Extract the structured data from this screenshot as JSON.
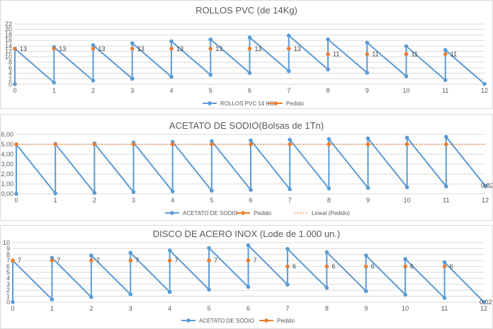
{
  "colors": {
    "series": "#5b9bd5",
    "pedido": "#ed7d31",
    "grid": "#d9d9d9",
    "text": "#595959"
  },
  "chart_data": [
    {
      "type": "line",
      "title": "ROLLOS PVC (de 14Kg)",
      "x": [
        0,
        1,
        2,
        3,
        4,
        5,
        6,
        7,
        8,
        9,
        10,
        11,
        12
      ],
      "ylim": [
        0,
        22
      ],
      "yticks": [
        0,
        2,
        4,
        6,
        8,
        10,
        12,
        14,
        16,
        18,
        20,
        22
      ],
      "ytick_labels": [
        "0",
        "2",
        "4",
        "6",
        "8",
        "10",
        "12",
        "14",
        "16",
        "18",
        "20",
        "22"
      ],
      "series": [
        {
          "name": "ROLLOS PVC 14 KG",
          "points": [
            [
              0,
              0
            ],
            [
              0,
              13
            ],
            [
              1,
              0.6
            ],
            [
              1,
              13.6
            ],
            [
              2,
              1.3
            ],
            [
              2,
              14.3
            ],
            [
              3,
              2
            ],
            [
              3,
              15
            ],
            [
              4,
              2.7
            ],
            [
              4,
              15.7
            ],
            [
              5,
              3.4
            ],
            [
              5,
              16.4
            ],
            [
              6,
              4.1
            ],
            [
              6,
              17.1
            ],
            [
              7,
              4.8
            ],
            [
              7,
              17.8
            ],
            [
              8,
              5.4
            ],
            [
              8,
              16.4
            ],
            [
              9,
              4.2
            ],
            [
              9,
              15.2
            ],
            [
              10,
              2.9
            ],
            [
              10,
              13.9
            ],
            [
              11,
              1.5
            ],
            [
              11,
              12.5
            ],
            [
              12,
              0.1
            ]
          ]
        },
        {
          "name": "Pedido",
          "points": [
            [
              0,
              13
            ],
            [
              1,
              13
            ],
            [
              2,
              13
            ],
            [
              3,
              13
            ],
            [
              4,
              13
            ],
            [
              5,
              13
            ],
            [
              6,
              13
            ],
            [
              7,
              13
            ],
            [
              8,
              11
            ],
            [
              9,
              11
            ],
            [
              10,
              11
            ],
            [
              11,
              11
            ]
          ],
          "labels": [
            "13",
            "13",
            "13",
            "13",
            "13",
            "13",
            "13",
            "13",
            "11",
            "11",
            "11",
            "11"
          ]
        }
      ],
      "legend": [
        "ROLLOS PVC 14 KG",
        "Pedido"
      ]
    },
    {
      "type": "line",
      "title": "ACETATO DE SODIO(Bolsas de 1Tn)",
      "x": [
        0,
        1,
        2,
        3,
        4,
        5,
        6,
        7,
        8,
        9,
        10,
        11,
        12
      ],
      "ylim": [
        0,
        6
      ],
      "yticks": [
        0,
        1,
        2,
        3,
        4,
        5,
        6
      ],
      "ytick_labels": [
        "0,00",
        "1,00",
        "2,00",
        "3,00",
        "4,00",
        "5,00",
        "6,00"
      ],
      "series": [
        {
          "name": "ACETATO DE SODIO",
          "points": [
            [
              0,
              0
            ],
            [
              0,
              5
            ],
            [
              1,
              0.05
            ],
            [
              1,
              5.05
            ],
            [
              2,
              0.1
            ],
            [
              2,
              5.1
            ],
            [
              3,
              0.18
            ],
            [
              3,
              5.18
            ],
            [
              4,
              0.25
            ],
            [
              4,
              5.25
            ],
            [
              5,
              0.32
            ],
            [
              5,
              5.32
            ],
            [
              6,
              0.4
            ],
            [
              6,
              5.4
            ],
            [
              7,
              0.47
            ],
            [
              7,
              5.47
            ],
            [
              8,
              0.54
            ],
            [
              8,
              5.54
            ],
            [
              9,
              0.6
            ],
            [
              9,
              5.6
            ],
            [
              10,
              0.67
            ],
            [
              10,
              5.67
            ],
            [
              11,
              0.75
            ],
            [
              11,
              5.75
            ],
            [
              12,
              0.82
            ]
          ]
        },
        {
          "name": "Pedido",
          "points": [
            [
              0,
              5
            ],
            [
              1,
              5
            ],
            [
              2,
              5
            ],
            [
              3,
              5
            ],
            [
              4,
              5
            ],
            [
              5,
              5
            ],
            [
              6,
              5
            ],
            [
              7,
              5
            ],
            [
              8,
              5
            ],
            [
              9,
              5
            ],
            [
              10,
              5
            ],
            [
              11,
              5
            ]
          ]
        },
        {
          "name": "Lineal (Pedido)",
          "points": [
            [
              0,
              5
            ],
            [
              12,
              5
            ]
          ]
        }
      ],
      "annotations": [
        {
          "x": 12,
          "y": 0.82,
          "text": "0,82"
        }
      ],
      "legend": [
        "ACETATO DE SODIO",
        "Pedido",
        "Lineal (Pedido)"
      ]
    },
    {
      "type": "line",
      "title": "DISCO DE ACERO INOX (Lode de 1.000 un.)",
      "x": [
        0,
        1,
        2,
        3,
        4,
        5,
        6,
        7,
        8,
        9,
        10,
        11,
        12
      ],
      "ylim": [
        0,
        10
      ],
      "yticks": [
        0,
        1,
        2,
        3,
        4,
        5,
        6,
        7,
        8,
        9,
        10
      ],
      "ytick_labels": [
        "0",
        "1",
        "2",
        "3",
        "4",
        "5",
        "6",
        "7",
        "8",
        "9",
        "10"
      ],
      "series": [
        {
          "name": "ACETATO DE SODIO",
          "points": [
            [
              0,
              0
            ],
            [
              0,
              7
            ],
            [
              1,
              0.45
            ],
            [
              1,
              7.45
            ],
            [
              2,
              0.85
            ],
            [
              2,
              7.85
            ],
            [
              3,
              1.3
            ],
            [
              3,
              8.3
            ],
            [
              4,
              1.7
            ],
            [
              4,
              8.7
            ],
            [
              5,
              2.1
            ],
            [
              5,
              9.1
            ],
            [
              6,
              2.55
            ],
            [
              6,
              9.55
            ],
            [
              7,
              2.95
            ],
            [
              7,
              8.95
            ],
            [
              8,
              2.4
            ],
            [
              8,
              8.4
            ],
            [
              9,
              1.85
            ],
            [
              9,
              7.85
            ],
            [
              10,
              1.25
            ],
            [
              10,
              7.25
            ],
            [
              11,
              0.7
            ],
            [
              11,
              6.7
            ],
            [
              12,
              0.02
            ]
          ]
        },
        {
          "name": "Pedido",
          "points": [
            [
              0,
              7
            ],
            [
              1,
              7
            ],
            [
              2,
              7
            ],
            [
              3,
              7
            ],
            [
              4,
              7
            ],
            [
              5,
              7
            ],
            [
              6,
              7
            ],
            [
              7,
              6
            ],
            [
              8,
              6
            ],
            [
              9,
              6
            ],
            [
              10,
              6
            ],
            [
              11,
              6
            ]
          ],
          "labels": [
            "7",
            "7",
            "7",
            "7",
            "7",
            "7",
            "7",
            "6",
            "6",
            "6",
            "6",
            "6"
          ]
        }
      ],
      "annotations": [
        {
          "x": 12,
          "y": 0.02,
          "text": "0,02"
        }
      ],
      "legend": [
        "ACETATO DE SODIO",
        "Pedido"
      ]
    }
  ]
}
